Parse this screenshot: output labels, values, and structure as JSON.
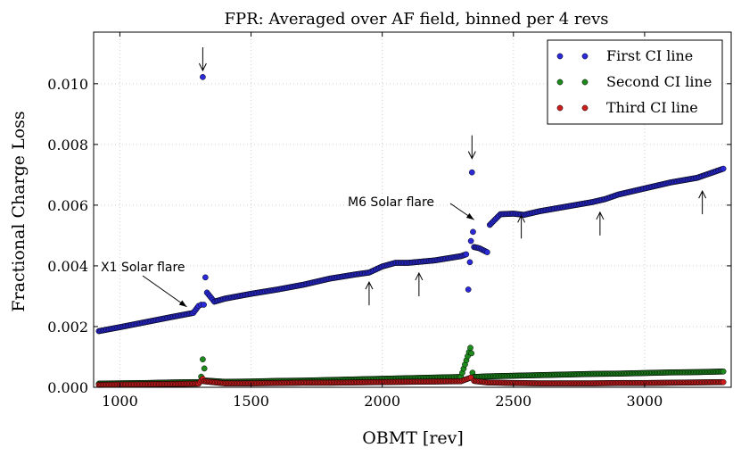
{
  "chart_data": {
    "type": "scatter",
    "title": "FPR: Averaged over AF field, binned per 4 revs",
    "xlabel": "OBMT [rev]",
    "ylabel": "Fractional Charge Loss",
    "xlim": [
      900,
      3330
    ],
    "ylim": [
      0,
      0.0117
    ],
    "xticks": [
      1000,
      1500,
      2000,
      2500,
      3000
    ],
    "xtick_labels": [
      "1000",
      "1500",
      "2000",
      "2500",
      "3000"
    ],
    "yticks": [
      0,
      0.002,
      0.004,
      0.006,
      0.008,
      0.01
    ],
    "ytick_labels": [
      "0.000",
      "0.002",
      "0.004",
      "0.006",
      "0.008",
      "0.010"
    ],
    "grid": true,
    "legend_position": "top-right",
    "series": [
      {
        "name": "First CI line",
        "color": "#2a2ad8",
        "points": [
          [
            920,
            0.00185
          ],
          [
            1000,
            0.00198
          ],
          [
            1100,
            0.00215
          ],
          [
            1200,
            0.00232
          ],
          [
            1280,
            0.00245
          ],
          [
            1300,
            0.00268
          ],
          [
            1310,
            0.00272
          ],
          [
            1316,
            0.01022
          ],
          [
            1320,
            0.00272
          ],
          [
            1326,
            0.00362
          ],
          [
            1332,
            0.00312
          ],
          [
            1360,
            0.00282
          ],
          [
            1400,
            0.00292
          ],
          [
            1500,
            0.00308
          ],
          [
            1600,
            0.00322
          ],
          [
            1700,
            0.00338
          ],
          [
            1800,
            0.00358
          ],
          [
            1900,
            0.00372
          ],
          [
            1950,
            0.00378
          ],
          [
            2000,
            0.00398
          ],
          [
            2050,
            0.0041
          ],
          [
            2100,
            0.0041
          ],
          [
            2200,
            0.00418
          ],
          [
            2300,
            0.00432
          ],
          [
            2320,
            0.00438
          ],
          [
            2328,
            0.00322
          ],
          [
            2334,
            0.00412
          ],
          [
            2338,
            0.00482
          ],
          [
            2342,
            0.00708
          ],
          [
            2346,
            0.00512
          ],
          [
            2350,
            0.00462
          ],
          [
            2370,
            0.00458
          ],
          [
            2400,
            0.00445
          ],
          [
            2410,
            0.00535
          ],
          [
            2450,
            0.0057
          ],
          [
            2500,
            0.00572
          ],
          [
            2540,
            0.00568
          ],
          [
            2600,
            0.0058
          ],
          [
            2700,
            0.00595
          ],
          [
            2800,
            0.0061
          ],
          [
            2850,
            0.0062
          ],
          [
            2900,
            0.00635
          ],
          [
            3000,
            0.00655
          ],
          [
            3100,
            0.00675
          ],
          [
            3200,
            0.0069
          ],
          [
            3300,
            0.0072
          ]
        ]
      },
      {
        "name": "Second CI line",
        "color": "#1e8a1e",
        "points": [
          [
            920,
            0.00012
          ],
          [
            1000,
            0.00013
          ],
          [
            1100,
            0.00014
          ],
          [
            1200,
            0.00016
          ],
          [
            1300,
            0.00017
          ],
          [
            1310,
            0.00035
          ],
          [
            1316,
            0.00092
          ],
          [
            1322,
            0.00062
          ],
          [
            1330,
            0.00022
          ],
          [
            1400,
            0.00018
          ],
          [
            1500,
            0.00019
          ],
          [
            1600,
            0.00021
          ],
          [
            1700,
            0.00022
          ],
          [
            1800,
            0.00024
          ],
          [
            1900,
            0.00026
          ],
          [
            2000,
            0.00028
          ],
          [
            2100,
            0.0003
          ],
          [
            2200,
            0.00032
          ],
          [
            2300,
            0.00034
          ],
          [
            2336,
            0.0013
          ],
          [
            2340,
            0.00112
          ],
          [
            2344,
            0.00048
          ],
          [
            2350,
            0.00034
          ],
          [
            2400,
            0.00036
          ],
          [
            2500,
            0.00038
          ],
          [
            2600,
            0.0004
          ],
          [
            2700,
            0.00042
          ],
          [
            2800,
            0.00044
          ],
          [
            2900,
            0.00045
          ],
          [
            3000,
            0.00047
          ],
          [
            3100,
            0.00049
          ],
          [
            3200,
            0.0005
          ],
          [
            3300,
            0.00052
          ]
        ]
      },
      {
        "name": "Third CI line",
        "color": "#cc1e1e",
        "points": [
          [
            920,
            8e-05
          ],
          [
            1000,
            9e-05
          ],
          [
            1100,
            0.0001
          ],
          [
            1200,
            0.00011
          ],
          [
            1300,
            0.00012
          ],
          [
            1316,
            0.00028
          ],
          [
            1320,
            0.0002
          ],
          [
            1400,
            0.00013
          ],
          [
            1500,
            0.00013
          ],
          [
            1600,
            0.00014
          ],
          [
            1700,
            0.00015
          ],
          [
            1800,
            0.00015
          ],
          [
            1900,
            0.00016
          ],
          [
            2000,
            0.00017
          ],
          [
            2100,
            0.00018
          ],
          [
            2200,
            0.00019
          ],
          [
            2300,
            0.0002
          ],
          [
            2338,
            0.00032
          ],
          [
            2350,
            0.00021
          ],
          [
            2400,
            0.00016
          ],
          [
            2500,
            0.00014
          ],
          [
            2600,
            0.00013
          ],
          [
            2700,
            0.00013
          ],
          [
            2800,
            0.00013
          ],
          [
            2900,
            0.00014
          ],
          [
            3000,
            0.00014
          ],
          [
            3100,
            0.00015
          ],
          [
            3200,
            0.00016
          ],
          [
            3300,
            0.00017
          ]
        ]
      }
    ],
    "annotations": [
      {
        "text": "X1 Solar flare",
        "arrow_to": [
          1255,
          0.00265
        ]
      },
      {
        "text": "M6 Solar flare",
        "arrow_to": [
          2350,
          0.00552
        ]
      }
    ],
    "markers": [
      {
        "x": 1316,
        "y": 0.0112,
        "direction": "down"
      },
      {
        "x": 2342,
        "y": 0.0083,
        "direction": "down"
      },
      {
        "x": 1950,
        "y": 0.0027,
        "direction": "up"
      },
      {
        "x": 2140,
        "y": 0.003,
        "direction": "up"
      },
      {
        "x": 2530,
        "y": 0.0049,
        "direction": "up"
      },
      {
        "x": 2830,
        "y": 0.005,
        "direction": "up"
      },
      {
        "x": 3220,
        "y": 0.0057,
        "direction": "up"
      }
    ]
  }
}
